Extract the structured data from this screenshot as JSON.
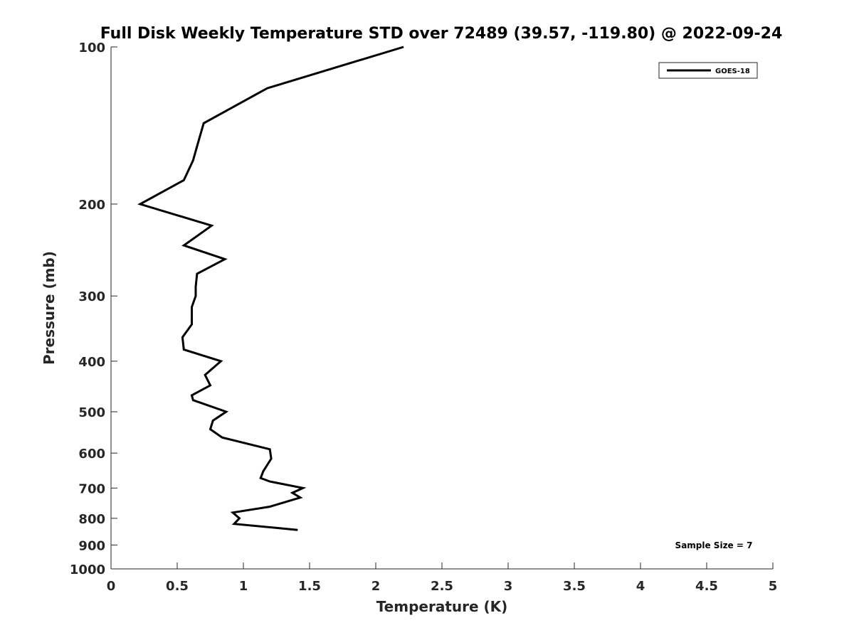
{
  "chart_data": {
    "type": "line",
    "title": "Full Disk Weekly Temperature STD over 72489 (39.57, -119.80) @ 2022-09-24",
    "xlabel": "Temperature (K)",
    "ylabel": "Pressure (mb)",
    "xlim": [
      0,
      5
    ],
    "ylim": [
      100,
      1000
    ],
    "y_scale": "log",
    "y_reversed": true,
    "grid": false,
    "legend_position": "top-right",
    "x_ticks": [
      0,
      0.5,
      1,
      1.5,
      2,
      2.5,
      3,
      3.5,
      4,
      4.5,
      5
    ],
    "x_tick_labels": [
      "0",
      "0.5",
      "1",
      "1.5",
      "2",
      "2.5",
      "3",
      "3.5",
      "4",
      "4.5",
      "5"
    ],
    "y_ticks": [
      100,
      200,
      300,
      400,
      500,
      600,
      700,
      800,
      900,
      1000
    ],
    "y_tick_labels": [
      "100",
      "200",
      "300",
      "400",
      "500",
      "600",
      "700",
      "800",
      "900",
      "1000"
    ],
    "series": [
      {
        "name": "GOES-18",
        "color": "#000000",
        "points": [
          {
            "x": 2.21,
            "y": 100
          },
          {
            "x": 1.18,
            "y": 120
          },
          {
            "x": 0.7,
            "y": 140
          },
          {
            "x": 0.65,
            "y": 155
          },
          {
            "x": 0.62,
            "y": 165
          },
          {
            "x": 0.55,
            "y": 180
          },
          {
            "x": 0.22,
            "y": 200
          },
          {
            "x": 0.76,
            "y": 220
          },
          {
            "x": 0.55,
            "y": 240
          },
          {
            "x": 0.86,
            "y": 255
          },
          {
            "x": 0.65,
            "y": 272
          },
          {
            "x": 0.64,
            "y": 288
          },
          {
            "x": 0.64,
            "y": 300
          },
          {
            "x": 0.61,
            "y": 315
          },
          {
            "x": 0.61,
            "y": 340
          },
          {
            "x": 0.54,
            "y": 360
          },
          {
            "x": 0.55,
            "y": 380
          },
          {
            "x": 0.83,
            "y": 400
          },
          {
            "x": 0.71,
            "y": 425
          },
          {
            "x": 0.75,
            "y": 445
          },
          {
            "x": 0.61,
            "y": 465
          },
          {
            "x": 0.62,
            "y": 475
          },
          {
            "x": 0.87,
            "y": 500
          },
          {
            "x": 0.77,
            "y": 520
          },
          {
            "x": 0.75,
            "y": 540
          },
          {
            "x": 0.84,
            "y": 560
          },
          {
            "x": 1.2,
            "y": 590
          },
          {
            "x": 1.21,
            "y": 615
          },
          {
            "x": 1.15,
            "y": 650
          },
          {
            "x": 1.13,
            "y": 670
          },
          {
            "x": 1.2,
            "y": 680
          },
          {
            "x": 1.45,
            "y": 700
          },
          {
            "x": 1.37,
            "y": 715
          },
          {
            "x": 1.43,
            "y": 730
          },
          {
            "x": 1.2,
            "y": 760
          },
          {
            "x": 0.92,
            "y": 780
          },
          {
            "x": 0.97,
            "y": 800
          },
          {
            "x": 0.93,
            "y": 820
          },
          {
            "x": 1.41,
            "y": 842
          }
        ]
      }
    ],
    "annotations": [
      {
        "text": "Sample Size = 7",
        "position": "bottom-right"
      }
    ]
  }
}
